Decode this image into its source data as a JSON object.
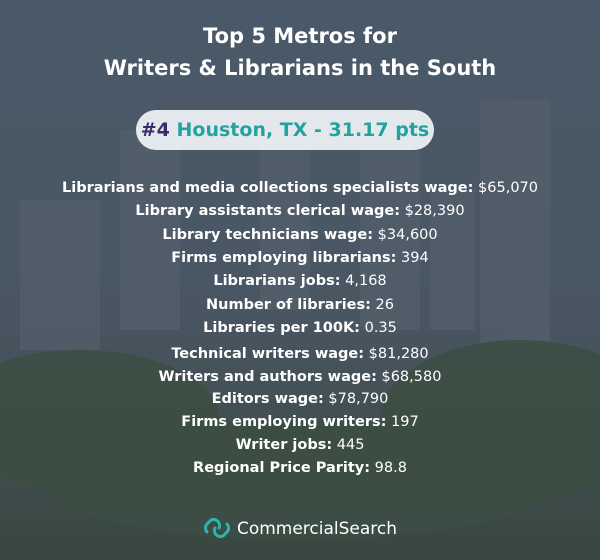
{
  "header": {
    "title_lines": [
      "Top 5 Metros for",
      "Writers & Librarians in the South"
    ]
  },
  "badge": {
    "rank": "#4",
    "text": "Houston, TX - 31.17 pts"
  },
  "stat_groups": [
    [
      {
        "label": "Librarians and media collections specialists wage:",
        "value": "$65,070"
      },
      {
        "label": "Library assistants clerical wage:",
        "value": "$28,390"
      },
      {
        "label": "Library technicians wage:",
        "value": "$34,600"
      },
      {
        "label": "Firms employing librarians:",
        "value": "394"
      },
      {
        "label": "Librarians jobs:",
        "value": "4,168"
      },
      {
        "label": "Number of libraries:",
        "value": "26"
      },
      {
        "label": "Libraries per 100K:",
        "value": "0.35"
      }
    ],
    [
      {
        "label": "Technical writers wage:",
        "value": "$81,280"
      },
      {
        "label": "Writers and authors wage:",
        "value": "$68,580"
      },
      {
        "label": "Editors wage:",
        "value": "$78,790"
      },
      {
        "label": "Firms employing writers:",
        "value": "197"
      },
      {
        "label": "Writer jobs:",
        "value": "445"
      },
      {
        "label": "Regional Price Parity:",
        "value": "98.8"
      }
    ]
  ],
  "footer": {
    "brand": "CommercialSearch"
  }
}
